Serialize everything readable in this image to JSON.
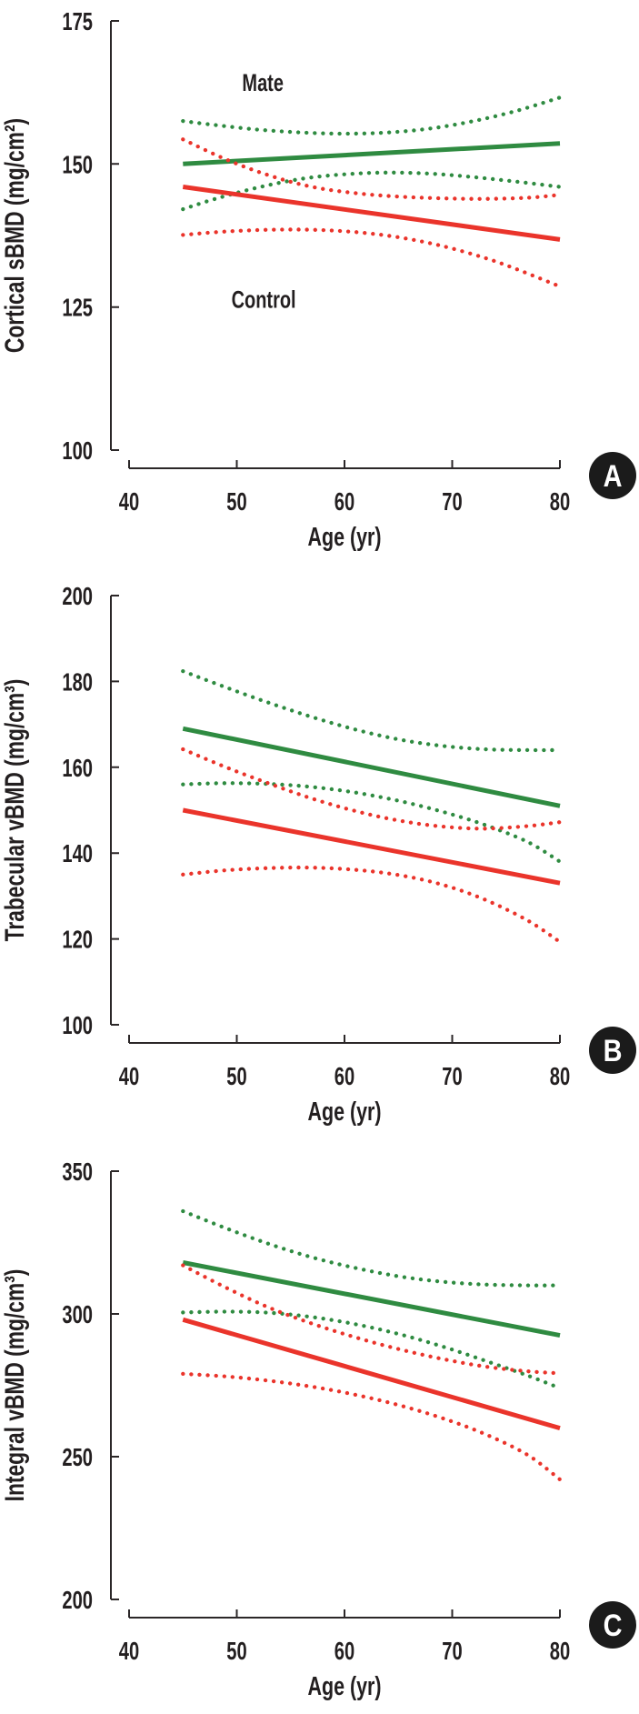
{
  "figure": {
    "colors": {
      "mate": "#2f8b41",
      "control": "#ea342b",
      "axis": "#2b2728",
      "text": "#231f20",
      "badge_bg": "#1b1b1b",
      "badge_text": "#ffffff"
    }
  },
  "chart_data": [
    {
      "type": "line",
      "panel_badge": "A",
      "xlabel": "Age (yr)",
      "ylabel": "Cortical sBMD (mg/cm²)",
      "xlim": [
        40,
        80
      ],
      "ylim": [
        100,
        175
      ],
      "xticks": [
        40,
        50,
        60,
        70,
        80
      ],
      "yticks": [
        175,
        150,
        125,
        100
      ],
      "grid": false,
      "legend_position": "in-plot-text",
      "annotations": [
        {
          "text": "Mate",
          "age": 50.5,
          "value": 162.8
        },
        {
          "text": "Control",
          "age": 49.5,
          "value": 124.9
        }
      ],
      "series": [
        {
          "name": "mate-mean",
          "group": "mate",
          "style": "solid",
          "points": [
            [
              45,
              150.0
            ],
            [
              80,
              153.6
            ]
          ]
        },
        {
          "name": "mate-upper-ci",
          "group": "mate",
          "style": "dotted",
          "points": [
            [
              45,
              157.5
            ],
            [
              48,
              156.8
            ],
            [
              52,
              156.0
            ],
            [
              56,
              155.5
            ],
            [
              60,
              155.3
            ],
            [
              64,
              155.5
            ],
            [
              68,
              156.2
            ],
            [
              72,
              157.5
            ],
            [
              76,
              159.3
            ],
            [
              80,
              161.6
            ]
          ]
        },
        {
          "name": "mate-lower-ci",
          "group": "mate",
          "style": "dotted",
          "points": [
            [
              45,
              142.1
            ],
            [
              48,
              143.9
            ],
            [
              52,
              145.9
            ],
            [
              56,
              147.4
            ],
            [
              60,
              148.2
            ],
            [
              64,
              148.5
            ],
            [
              68,
              148.3
            ],
            [
              72,
              147.7
            ],
            [
              76,
              146.9
            ],
            [
              80,
              146.0
            ]
          ]
        },
        {
          "name": "control-mean",
          "group": "control",
          "style": "solid",
          "points": [
            [
              45,
              146.0
            ],
            [
              80,
              136.8
            ]
          ]
        },
        {
          "name": "control-upper-ci",
          "group": "control",
          "style": "dotted",
          "points": [
            [
              45,
              154.3
            ],
            [
              49,
              150.8
            ],
            [
              53,
              148.0
            ],
            [
              57,
              146.0
            ],
            [
              61,
              144.9
            ],
            [
              65,
              144.3
            ],
            [
              69,
              144.0
            ],
            [
              73,
              143.9
            ],
            [
              77,
              144.1
            ],
            [
              80,
              144.6
            ]
          ]
        },
        {
          "name": "control-lower-ci",
          "group": "control",
          "style": "dotted",
          "points": [
            [
              45,
              137.6
            ],
            [
              49,
              138.2
            ],
            [
              53,
              138.5
            ],
            [
              57,
              138.5
            ],
            [
              61,
              138.1
            ],
            [
              65,
              137.2
            ],
            [
              69,
              135.7
            ],
            [
              73,
              133.6
            ],
            [
              76,
              131.6
            ],
            [
              80,
              128.6
            ]
          ]
        }
      ]
    },
    {
      "type": "line",
      "panel_badge": "B",
      "xlabel": "Age (yr)",
      "ylabel": "Trabecular vBMD (mg/cm³)",
      "xlim": [
        40,
        80
      ],
      "ylim": [
        100,
        200
      ],
      "xticks": [
        40,
        50,
        60,
        70,
        80
      ],
      "yticks": [
        200,
        180,
        160,
        140,
        120,
        100
      ],
      "grid": false,
      "legend_position": "none",
      "annotations": [],
      "series": [
        {
          "name": "mate-mean",
          "group": "mate",
          "style": "solid",
          "points": [
            [
              45,
              169.0
            ],
            [
              80,
              151.0
            ]
          ]
        },
        {
          "name": "mate-upper-ci",
          "group": "mate",
          "style": "dotted",
          "points": [
            [
              45,
              182.4
            ],
            [
              49,
              178.6
            ],
            [
              53,
              175.0
            ],
            [
              57,
              171.7
            ],
            [
              61,
              168.8
            ],
            [
              65,
              166.5
            ],
            [
              69,
              165.0
            ],
            [
              73,
              164.2
            ],
            [
              77,
              164.0
            ],
            [
              80,
              164.0
            ]
          ]
        },
        {
          "name": "mate-lower-ci",
          "group": "mate",
          "style": "dotted",
          "points": [
            [
              45,
              156.0
            ],
            [
              49,
              156.3
            ],
            [
              53,
              156.1
            ],
            [
              57,
              155.4
            ],
            [
              61,
              154.1
            ],
            [
              65,
              152.2
            ],
            [
              69,
              149.7
            ],
            [
              73,
              146.6
            ],
            [
              77,
              142.6
            ],
            [
              80,
              138.0
            ]
          ]
        },
        {
          "name": "control-mean",
          "group": "control",
          "style": "solid",
          "points": [
            [
              45,
              150.0
            ],
            [
              80,
              133.0
            ]
          ]
        },
        {
          "name": "control-upper-ci",
          "group": "control",
          "style": "dotted",
          "points": [
            [
              45,
              164.2
            ],
            [
              49,
              160.0
            ],
            [
              53,
              156.2
            ],
            [
              57,
              152.7
            ],
            [
              61,
              149.8
            ],
            [
              65,
              147.6
            ],
            [
              69,
              146.2
            ],
            [
              73,
              145.7
            ],
            [
              77,
              146.3
            ],
            [
              80,
              147.2
            ]
          ]
        },
        {
          "name": "control-lower-ci",
          "group": "control",
          "style": "dotted",
          "points": [
            [
              45,
              135.0
            ],
            [
              49,
              136.0
            ],
            [
              53,
              136.5
            ],
            [
              57,
              136.6
            ],
            [
              61,
              136.1
            ],
            [
              65,
              134.9
            ],
            [
              69,
              132.7
            ],
            [
              73,
              129.2
            ],
            [
              77,
              124.3
            ],
            [
              80,
              119.3
            ]
          ]
        }
      ]
    },
    {
      "type": "line",
      "panel_badge": "C",
      "xlabel": "Age (yr)",
      "ylabel": "Integral vBMD (mg/cm³)",
      "xlim": [
        40,
        80
      ],
      "ylim": [
        200,
        350
      ],
      "xticks": [
        40,
        50,
        60,
        70,
        80
      ],
      "yticks": [
        350,
        300,
        250,
        200
      ],
      "grid": false,
      "legend_position": "none",
      "annotations": [],
      "series": [
        {
          "name": "mate-mean",
          "group": "mate",
          "style": "solid",
          "points": [
            [
              45,
              318.0
            ],
            [
              80,
              292.5
            ]
          ]
        },
        {
          "name": "mate-upper-ci",
          "group": "mate",
          "style": "dotted",
          "points": [
            [
              45,
              336.0
            ],
            [
              49,
              330.0
            ],
            [
              53,
              324.5
            ],
            [
              57,
              319.8
            ],
            [
              61,
              316.1
            ],
            [
              65,
              313.2
            ],
            [
              69,
              311.3
            ],
            [
              73,
              310.3
            ],
            [
              77,
              310.0
            ],
            [
              80,
              310.0
            ]
          ]
        },
        {
          "name": "mate-lower-ci",
          "group": "mate",
          "style": "dotted",
          "points": [
            [
              45,
              300.5
            ],
            [
              49,
              300.8
            ],
            [
              53,
              300.4
            ],
            [
              57,
              298.9
            ],
            [
              61,
              296.4
            ],
            [
              65,
              293.0
            ],
            [
              69,
              288.7
            ],
            [
              73,
              283.7
            ],
            [
              77,
              278.4
            ],
            [
              80,
              274.0
            ]
          ]
        },
        {
          "name": "control-mean",
          "group": "control",
          "style": "solid",
          "points": [
            [
              45,
              298.0
            ],
            [
              80,
              260.0
            ]
          ]
        },
        {
          "name": "control-upper-ci",
          "group": "control",
          "style": "dotted",
          "points": [
            [
              45,
              317.0
            ],
            [
              49,
              309.2
            ],
            [
              53,
              302.2
            ],
            [
              57,
              296.6
            ],
            [
              61,
              291.8
            ],
            [
              65,
              287.7
            ],
            [
              69,
              284.3
            ],
            [
              73,
              281.6
            ],
            [
              77,
              279.9
            ],
            [
              80,
              279.2
            ]
          ]
        },
        {
          "name": "control-lower-ci",
          "group": "control",
          "style": "dotted",
          "points": [
            [
              45,
              279.0
            ],
            [
              49,
              278.1
            ],
            [
              53,
              276.6
            ],
            [
              57,
              274.5
            ],
            [
              61,
              271.7
            ],
            [
              65,
              268.1
            ],
            [
              69,
              263.6
            ],
            [
              73,
              258.0
            ],
            [
              77,
              250.6
            ],
            [
              80,
              242.0
            ]
          ]
        }
      ]
    }
  ]
}
